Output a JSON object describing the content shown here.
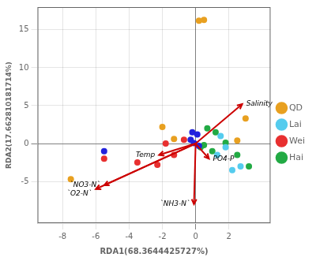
{
  "chart_data": {
    "type": "scatter",
    "xlabel": "RDA1(68.3644425727%)",
    "ylabel": "RDA2(17.662810181714%)",
    "xlim": [
      -9.5,
      4.5
    ],
    "ylim": [
      -10.5,
      18.0
    ],
    "xticks": [
      -8,
      -6,
      -4,
      -2,
      0,
      2
    ],
    "yticks": [
      -5,
      0,
      5,
      10,
      15
    ],
    "grid": true,
    "legend": "right",
    "series": [
      {
        "name": "QD",
        "color": "#E8A020",
        "values": [
          [
            0.5,
            16.3
          ],
          [
            -2.0,
            2.2
          ],
          [
            -1.3,
            0.6
          ],
          [
            0.2,
            16.2
          ],
          [
            3.0,
            3.3
          ],
          [
            2.5,
            0.4
          ],
          [
            -7.5,
            -4.7
          ]
        ]
      },
      {
        "name": "Lai",
        "color": "#55CCEE",
        "values": [
          [
            1.5,
            1.0
          ],
          [
            1.8,
            -0.5
          ],
          [
            2.2,
            -3.5
          ],
          [
            1.3,
            -1.5
          ],
          [
            2.7,
            -3.0
          ]
        ]
      },
      {
        "name": "Wei",
        "color": "#E83030",
        "values": [
          [
            -5.5,
            -2.0
          ],
          [
            -3.5,
            -2.5
          ],
          [
            -1.8,
            -0.0
          ],
          [
            -2.3,
            -2.8
          ],
          [
            -1.3,
            -1.5
          ],
          [
            -0.7,
            0.5
          ]
        ]
      },
      {
        "name": "Hai",
        "color": "#22AA44",
        "values": [
          [
            0.7,
            2.0
          ],
          [
            1.2,
            1.5
          ],
          [
            0.5,
            -0.2
          ],
          [
            1.8,
            0.1
          ],
          [
            2.5,
            -1.5
          ],
          [
            3.2,
            -3.0
          ],
          [
            1.0,
            -1.0
          ],
          [
            0.3,
            -0.5
          ]
        ]
      },
      {
        "color": "#2222DD",
        "values": [
          [
            -0.2,
            1.5
          ],
          [
            0.1,
            1.2
          ],
          [
            -0.1,
            0.05
          ],
          [
            0.2,
            -0.3
          ],
          [
            -5.5,
            -1.0
          ],
          [
            -0.3,
            0.5
          ]
        ]
      }
    ],
    "annotations": [
      {
        "text": "Salinity",
        "x": 2.8,
        "y": 5.2,
        "color": "#CC0000"
      },
      {
        "text": "Temp",
        "x": -2.2,
        "y": -1.5,
        "color": "#CC0000"
      },
      {
        "text": "PO4-P",
        "x": 0.8,
        "y": -2.0,
        "color": "#CC0000"
      },
      {
        "text": "`NH3-N`",
        "x": -0.1,
        "y": -8.0,
        "color": "#CC0000"
      },
      {
        "text": "`NO3-N`",
        "x": -5.5,
        "y": -5.5,
        "color": "#CC0000"
      },
      {
        "text": "`O2-N`",
        "x": -6.0,
        "y": -6.0,
        "color": "#CC0000"
      }
    ]
  }
}
